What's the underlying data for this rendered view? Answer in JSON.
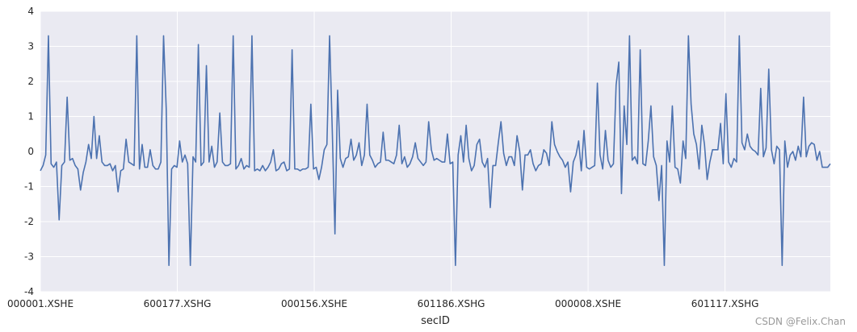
{
  "chart_data": {
    "type": "line",
    "title": "",
    "xlabel": "secID",
    "ylabel": "",
    "xlim": [
      0,
      300
    ],
    "ylim": [
      -4,
      4
    ],
    "yticks": [
      -4,
      -3,
      -2,
      -1,
      0,
      1,
      2,
      3,
      4
    ],
    "xticks": [
      {
        "pos": 0,
        "label": "000001.XSHE"
      },
      {
        "pos": 52,
        "label": "600177.XSHG"
      },
      {
        "pos": 104,
        "label": "000156.XSHE"
      },
      {
        "pos": 156,
        "label": "601186.XSHG"
      },
      {
        "pos": 208,
        "label": "000008.XSHE"
      },
      {
        "pos": 260,
        "label": "601117.XSHG"
      }
    ],
    "grid": true,
    "line_color": "#4c72b0",
    "background": "#eaeaf2",
    "series": [
      {
        "values": [
          -0.55,
          -0.4,
          -0.1,
          3.3,
          -0.35,
          -0.45,
          -0.3,
          -1.95,
          -0.4,
          -0.3,
          1.55,
          -0.25,
          -0.2,
          -0.4,
          -0.5,
          -1.1,
          -0.6,
          -0.3,
          0.2,
          -0.2,
          1.0,
          -0.2,
          0.45,
          -0.3,
          -0.4,
          -0.4,
          -0.35,
          -0.55,
          -0.4,
          -1.15,
          -0.55,
          -0.5,
          0.35,
          -0.3,
          -0.35,
          -0.4,
          3.3,
          -0.5,
          0.2,
          -0.45,
          -0.45,
          0.05,
          -0.4,
          -0.5,
          -0.5,
          -0.3,
          3.3,
          1.2,
          -3.25,
          -0.5,
          -0.4,
          -0.45,
          0.3,
          -0.3,
          -0.1,
          -0.35,
          -3.25,
          -0.15,
          -0.3,
          3.05,
          -0.4,
          -0.3,
          2.45,
          -0.3,
          0.15,
          -0.45,
          -0.3,
          1.1,
          -0.3,
          -0.4,
          -0.4,
          -0.35,
          3.3,
          -0.5,
          -0.4,
          -0.2,
          -0.5,
          -0.4,
          -0.45,
          3.3,
          -0.55,
          -0.5,
          -0.55,
          -0.4,
          -0.55,
          -0.45,
          -0.3,
          0.05,
          -0.55,
          -0.5,
          -0.35,
          -0.3,
          -0.55,
          -0.5,
          2.9,
          -0.5,
          -0.5,
          -0.55,
          -0.5,
          -0.5,
          -0.45,
          1.35,
          -0.5,
          -0.45,
          -0.8,
          -0.45,
          0.05,
          0.2,
          3.3,
          0.6,
          -2.35,
          1.75,
          -0.2,
          -0.45,
          -0.2,
          -0.15,
          0.35,
          -0.25,
          -0.1,
          0.25,
          -0.4,
          -0.1,
          1.35,
          -0.1,
          -0.25,
          -0.45,
          -0.35,
          -0.3,
          0.55,
          -0.25,
          -0.25,
          -0.3,
          -0.35,
          -0.1,
          0.75,
          -0.35,
          -0.15,
          -0.45,
          -0.35,
          -0.15,
          0.25,
          -0.2,
          -0.3,
          -0.4,
          -0.3,
          0.85,
          0.05,
          -0.25,
          -0.2,
          -0.25,
          -0.3,
          -0.3,
          0.5,
          -0.35,
          -0.3,
          -3.25,
          -0.1,
          0.45,
          -0.3,
          0.75,
          -0.2,
          -0.55,
          -0.4,
          0.2,
          0.35,
          -0.3,
          -0.45,
          -0.2,
          -1.6,
          -0.4,
          -0.4,
          0.25,
          0.85,
          -0.05,
          -0.4,
          -0.15,
          -0.15,
          -0.4,
          0.45,
          0.0,
          -1.1,
          -0.1,
          -0.1,
          0.05,
          -0.35,
          -0.55,
          -0.4,
          -0.35,
          0.05,
          -0.05,
          -0.4,
          0.85,
          0.2,
          0.0,
          -0.15,
          -0.25,
          -0.45,
          -0.3,
          -1.15,
          -0.3,
          -0.1,
          0.3,
          -0.55,
          0.6,
          -0.45,
          -0.5,
          -0.45,
          -0.4,
          1.95,
          -0.1,
          -0.5,
          0.6,
          -0.25,
          -0.45,
          -0.35,
          1.9,
          2.55,
          -1.2,
          1.3,
          0.2,
          3.3,
          -0.25,
          -0.15,
          -0.35,
          2.9,
          -0.35,
          -0.4,
          0.3,
          1.3,
          -0.15,
          -0.4,
          -1.4,
          -0.4,
          -3.25,
          0.3,
          -0.3,
          1.3,
          -0.45,
          -0.5,
          -0.9,
          0.3,
          -0.2,
          3.3,
          1.35,
          0.5,
          0.2,
          -0.5,
          0.75,
          0.2,
          -0.8,
          -0.3,
          0.05,
          0.05,
          0.05,
          0.8,
          -0.35,
          1.65,
          -0.3,
          -0.45,
          -0.2,
          -0.3,
          3.3,
          0.25,
          0.05,
          0.5,
          0.15,
          0.05,
          0.0,
          -0.1,
          1.8,
          -0.15,
          0.1,
          2.35,
          0.05,
          -0.35,
          0.15,
          0.05,
          -3.25,
          0.3,
          -0.45,
          -0.1,
          0.0,
          -0.25,
          0.15,
          -0.15,
          1.55,
          -0.15,
          0.15,
          0.25,
          0.2,
          -0.25,
          0.0,
          -0.45,
          -0.45,
          -0.45,
          -0.35
        ]
      }
    ]
  },
  "watermark": "CSDN @Felix.Chan"
}
